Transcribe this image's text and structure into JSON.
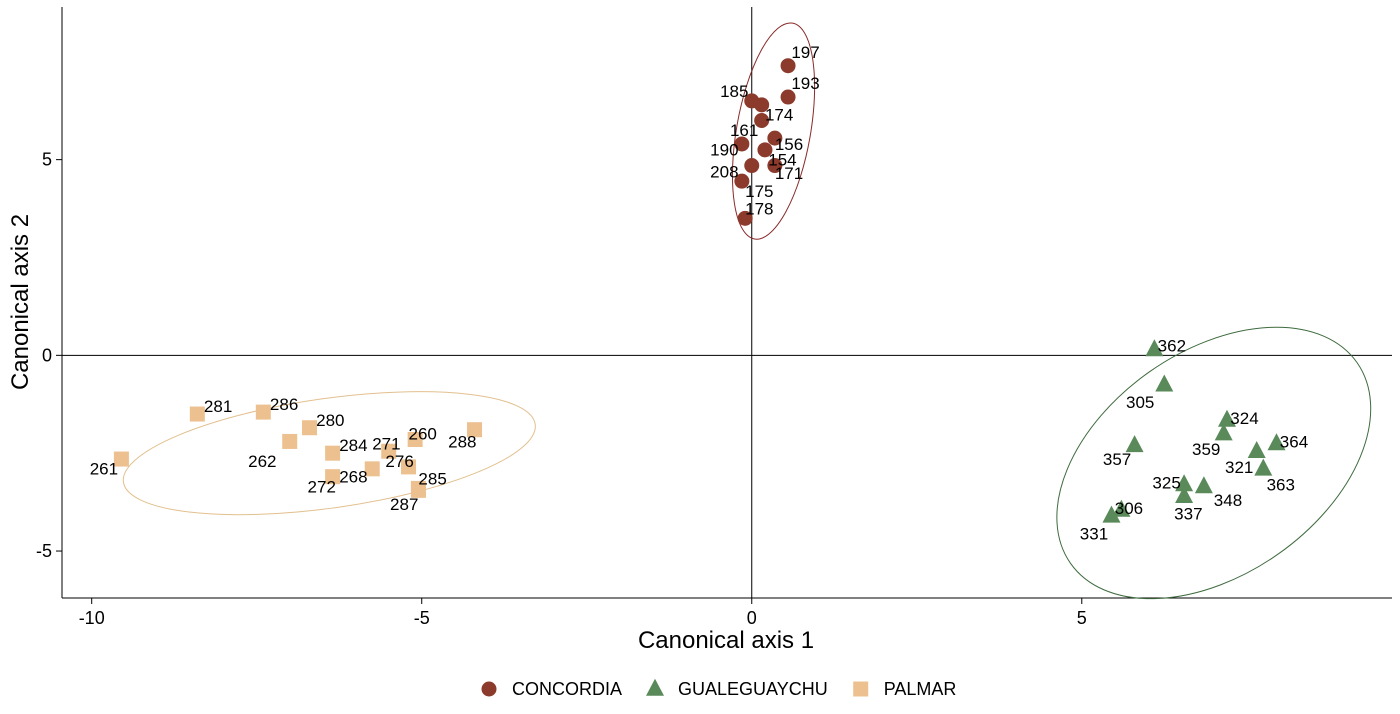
{
  "chart_data": {
    "type": "scatter",
    "title": "",
    "xlabel": "Canonical axis 1",
    "ylabel": "Canonical axis 2",
    "xlim": [
      -10.45,
      9.7
    ],
    "ylim": [
      -6.2,
      8.9
    ],
    "xticks": [
      -10,
      -5,
      0,
      5
    ],
    "xtick_labels": [
      "-10",
      "-5",
      "0",
      "5"
    ],
    "yticks": [
      -5,
      0,
      5
    ],
    "ytick_labels": [
      "-5",
      "0",
      "5"
    ],
    "reference_lines": {
      "x": 0,
      "y": 0
    },
    "grid": false,
    "legend_position": "bottom",
    "colors": {
      "CONCORDIA": "#8B3A2B",
      "GUALEGUAYCHU": "#5A8A5A",
      "PALMAR": "#EDC08F",
      "ellipse_CONCORDIA": "#8B2A2A",
      "ellipse_GUALEGUAYCHU": "#3E6B3E",
      "ellipse_PALMAR": "#E2C08F"
    },
    "series": [
      {
        "name": "CONCORDIA",
        "marker": "circle",
        "ellipse": {
          "cx": 0.33,
          "cy": 5.73,
          "rx": 0.56,
          "ry": 2.8,
          "angle_deg": 10
        },
        "points": [
          {
            "id": "197",
            "x": 0.55,
            "y": 7.4,
            "lx": 0.6,
            "ly": 7.6,
            "anchor": "start"
          },
          {
            "id": "193",
            "x": 0.55,
            "y": 6.6,
            "lx": 0.6,
            "ly": 6.8,
            "anchor": "start"
          },
          {
            "id": "185",
            "x": 0.0,
            "y": 6.5,
            "lx": -0.05,
            "ly": 6.6,
            "anchor": "end"
          },
          {
            "id": "174",
            "x": 0.15,
            "y": 6.4,
            "lx": 0.2,
            "ly": 6.0,
            "anchor": "start"
          },
          {
            "id": "161",
            "x": 0.15,
            "y": 6.0,
            "lx": 0.1,
            "ly": 5.6,
            "anchor": "end"
          },
          {
            "id": "156",
            "x": 0.35,
            "y": 5.55,
            "lx": 0.35,
            "ly": 5.25,
            "anchor": "start"
          },
          {
            "id": "190",
            "x": -0.15,
            "y": 5.4,
            "lx": -0.2,
            "ly": 5.1,
            "anchor": "end"
          },
          {
            "id": "154",
            "x": 0.2,
            "y": 5.25,
            "lx": 0.25,
            "ly": 4.85,
            "anchor": "start"
          },
          {
            "id": "171",
            "x": 0.35,
            "y": 4.85,
            "lx": 0.35,
            "ly": 4.5,
            "anchor": "start"
          },
          {
            "id": "208",
            "x": -0.15,
            "y": 4.45,
            "lx": -0.2,
            "ly": 4.55,
            "anchor": "end"
          },
          {
            "id": "175",
            "x": 0.0,
            "y": 4.85,
            "lx": -0.1,
            "ly": 4.05,
            "anchor": "start"
          },
          {
            "id": "178",
            "x": -0.1,
            "y": 3.5,
            "lx": -0.1,
            "ly": 3.6,
            "anchor": "start"
          }
        ]
      },
      {
        "name": "GUALEGUAYCHU",
        "marker": "triangle",
        "ellipse": {
          "cx": 7.0,
          "cy": -2.75,
          "rx": 2.65,
          "ry": 2.85,
          "angle_deg": -35
        },
        "points": [
          {
            "id": "362",
            "x": 6.1,
            "y": 0.15,
            "lx": 6.15,
            "ly": 0.1,
            "anchor": "start"
          },
          {
            "id": "305",
            "x": 6.25,
            "y": -0.75,
            "lx": 6.1,
            "ly": -1.35,
            "anchor": "end"
          },
          {
            "id": "324",
            "x": 7.2,
            "y": -1.65,
            "lx": 7.25,
            "ly": -1.75,
            "anchor": "start"
          },
          {
            "id": "364",
            "x": 7.95,
            "y": -2.25,
            "lx": 8.0,
            "ly": -2.35,
            "anchor": "start"
          },
          {
            "id": "359",
            "x": 7.15,
            "y": -2.0,
            "lx": 7.1,
            "ly": -2.55,
            "anchor": "end"
          },
          {
            "id": "321",
            "x": 7.65,
            "y": -2.45,
            "lx": 7.6,
            "ly": -3.0,
            "anchor": "end"
          },
          {
            "id": "357",
            "x": 5.8,
            "y": -2.3,
            "lx": 5.75,
            "ly": -2.8,
            "anchor": "end"
          },
          {
            "id": "363",
            "x": 7.75,
            "y": -2.9,
            "lx": 7.8,
            "ly": -3.45,
            "anchor": "start"
          },
          {
            "id": "325",
            "x": 6.55,
            "y": -3.3,
            "lx": 6.5,
            "ly": -3.4,
            "anchor": "end"
          },
          {
            "id": "348",
            "x": 6.85,
            "y": -3.35,
            "lx": 7.0,
            "ly": -3.85,
            "anchor": "start"
          },
          {
            "id": "337",
            "x": 6.55,
            "y": -3.6,
            "lx": 6.4,
            "ly": -4.2,
            "anchor": "start"
          },
          {
            "id": "306",
            "x": 5.6,
            "y": -3.95,
            "lx": 5.5,
            "ly": -4.05,
            "anchor": "start"
          },
          {
            "id": "331",
            "x": 5.45,
            "y": -4.1,
            "lx": 5.4,
            "ly": -4.7,
            "anchor": "end"
          }
        ]
      },
      {
        "name": "PALMAR",
        "marker": "square",
        "ellipse": {
          "cx": -6.4,
          "cy": -2.5,
          "rx": 3.15,
          "ry": 1.4,
          "angle_deg": -8
        },
        "points": [
          {
            "id": "281",
            "x": -8.4,
            "y": -1.5,
            "lx": -8.3,
            "ly": -1.45,
            "anchor": "start"
          },
          {
            "id": "286",
            "x": -7.4,
            "y": -1.45,
            "lx": -7.3,
            "ly": -1.4,
            "anchor": "start"
          },
          {
            "id": "280",
            "x": -6.7,
            "y": -1.85,
            "lx": -6.6,
            "ly": -1.8,
            "anchor": "start"
          },
          {
            "id": "262",
            "x": -7.0,
            "y": -2.2,
            "lx": -7.2,
            "ly": -2.85,
            "anchor": "end"
          },
          {
            "id": "260",
            "x": -5.1,
            "y": -2.15,
            "lx": -5.2,
            "ly": -2.15,
            "anchor": "start"
          },
          {
            "id": "288",
            "x": -4.2,
            "y": -1.9,
            "lx": -4.6,
            "ly": -2.35,
            "anchor": "start"
          },
          {
            "id": "271",
            "x": -5.5,
            "y": -2.45,
            "lx": -5.75,
            "ly": -2.4,
            "anchor": "start"
          },
          {
            "id": "284",
            "x": -6.35,
            "y": -2.5,
            "lx": -6.25,
            "ly": -2.45,
            "anchor": "start"
          },
          {
            "id": "276",
            "x": -5.2,
            "y": -2.85,
            "lx": -5.55,
            "ly": -2.85,
            "anchor": "start"
          },
          {
            "id": "268",
            "x": -5.75,
            "y": -2.9,
            "lx": -6.25,
            "ly": -3.25,
            "anchor": "start"
          },
          {
            "id": "272",
            "x": -6.35,
            "y": -3.1,
            "lx": -6.3,
            "ly": -3.5,
            "anchor": "end"
          },
          {
            "id": "261",
            "x": -9.55,
            "y": -2.65,
            "lx": -9.6,
            "ly": -3.05,
            "anchor": "end"
          },
          {
            "id": "285",
            "x": -5.05,
            "y": -3.4,
            "lx": -5.05,
            "ly": -3.3,
            "anchor": "start"
          },
          {
            "id": "287",
            "x": -5.05,
            "y": -3.45,
            "lx": -5.05,
            "ly": -3.95,
            "anchor": "end"
          }
        ]
      }
    ],
    "legend": [
      "CONCORDIA",
      "GUALEGUAYCHU",
      "PALMAR"
    ]
  }
}
